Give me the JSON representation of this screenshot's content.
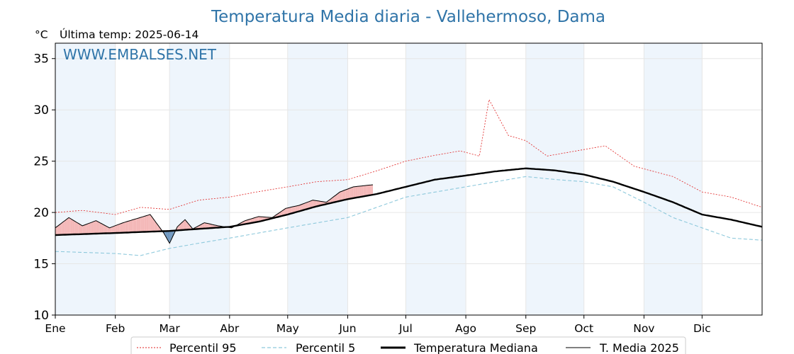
{
  "header": {
    "title": "Temperatura Media diaria - Vallehermoso, Dama",
    "unit": "°C",
    "last_temp": "Última temp: 2025-06-14",
    "watermark": "WWW.EMBALSES.NET"
  },
  "colors": {
    "title": "#2f74a8",
    "watermark": "#2f74a8",
    "p95": "#e02020",
    "p5": "#8ec9dc",
    "median": "#000000",
    "current": "#000000",
    "above_fill": "#f4b8b8",
    "below_fill": "#6f98c0",
    "band": "#eef5fc"
  },
  "legend": {
    "p95": "Percentil 95",
    "p5": "Percentil 5",
    "median": "Temperatura Mediana",
    "current": "T. Media 2025"
  },
  "chart_data": {
    "type": "line",
    "title": "Temperatura Media diaria - Vallehermoso, Dama",
    "ylabel": "°C",
    "ylim": [
      10,
      36.5
    ],
    "xlim": [
      1,
      366
    ],
    "yticks": [
      10,
      15,
      20,
      25,
      30,
      35
    ],
    "months": [
      "Ene",
      "Feb",
      "Mar",
      "Abr",
      "May",
      "Jun",
      "Jul",
      "Ago",
      "Sep",
      "Oct",
      "Nov",
      "Dic"
    ],
    "month_start_days": [
      1,
      32,
      60,
      91,
      121,
      152,
      182,
      213,
      244,
      274,
      305,
      335
    ],
    "shaded_months": [
      "Ene",
      "Mar",
      "May",
      "Jul",
      "Sep",
      "Nov"
    ],
    "grid": true,
    "legend_position": "bottom",
    "series": [
      {
        "name": "Percentil 95",
        "style": "dotted",
        "days": [
          1,
          15,
          32,
          45,
          60,
          75,
          91,
          105,
          121,
          136,
          152,
          166,
          182,
          195,
          210,
          220,
          225,
          235,
          244,
          255,
          270,
          285,
          300,
          320,
          335,
          350,
          366
        ],
        "values": [
          20.0,
          20.2,
          19.8,
          20.5,
          20.3,
          21.2,
          21.5,
          22.0,
          22.5,
          23.0,
          23.2,
          24.0,
          25.0,
          25.5,
          26.0,
          25.5,
          31.0,
          27.5,
          27.0,
          25.5,
          26.0,
          26.5,
          24.5,
          23.5,
          22.0,
          21.5,
          20.5
        ]
      },
      {
        "name": "Percentil 5",
        "style": "dashed",
        "days": [
          1,
          32,
          45,
          60,
          75,
          91,
          121,
          152,
          182,
          213,
          244,
          260,
          274,
          289,
          305,
          320,
          335,
          350,
          366
        ],
        "values": [
          16.2,
          16.0,
          15.8,
          16.5,
          17.0,
          17.5,
          18.5,
          19.5,
          21.5,
          22.5,
          23.5,
          23.2,
          23.0,
          22.5,
          21.0,
          19.5,
          18.5,
          17.5,
          17.3
        ]
      },
      {
        "name": "Temperatura Mediana",
        "style": "thick",
        "days": [
          1,
          32,
          60,
          75,
          91,
          106,
          121,
          136,
          152,
          167,
          182,
          197,
          213,
          228,
          244,
          259,
          274,
          289,
          305,
          320,
          335,
          350,
          366
        ],
        "values": [
          17.8,
          18.0,
          18.2,
          18.4,
          18.6,
          19.1,
          19.8,
          20.6,
          21.3,
          21.8,
          22.5,
          23.2,
          23.6,
          24.0,
          24.3,
          24.1,
          23.7,
          23.0,
          22.0,
          21.0,
          19.8,
          19.3,
          18.6
        ]
      },
      {
        "name": "T. Media 2025",
        "style": "thin",
        "days": [
          1,
          8,
          15,
          22,
          29,
          36,
          43,
          50,
          57,
          60,
          64,
          68,
          72,
          78,
          85,
          92,
          99,
          106,
          113,
          120,
          127,
          134,
          141,
          148,
          155,
          160,
          165
        ],
        "values": [
          18.5,
          19.5,
          18.7,
          19.2,
          18.5,
          19.0,
          19.4,
          19.8,
          18.0,
          17.0,
          18.6,
          19.3,
          18.4,
          19.0,
          18.7,
          18.5,
          19.2,
          19.6,
          19.5,
          20.4,
          20.7,
          21.2,
          21.0,
          22.0,
          22.5,
          22.6,
          22.7
        ]
      }
    ]
  }
}
